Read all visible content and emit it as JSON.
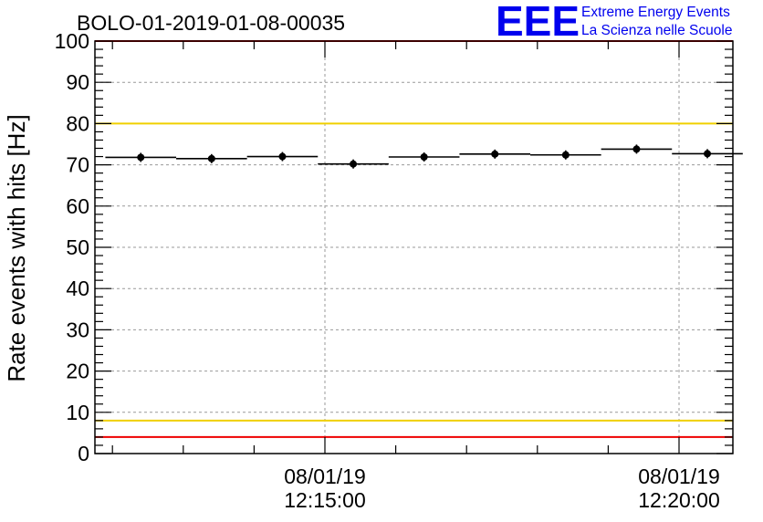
{
  "chart_data": {
    "type": "scatter",
    "title": "BOLO-01-2019-01-08-00035",
    "ylabel": "Rate events with hits [Hz]",
    "xlabel": "",
    "ylim": [
      0,
      100
    ],
    "y_ticks": [
      0,
      10,
      20,
      30,
      40,
      50,
      60,
      70,
      80,
      90,
      100
    ],
    "x_tick_labels": [
      {
        "date": "08/01/19",
        "time": "12:15:00"
      },
      {
        "date": "08/01/19",
        "time": "12:20:00"
      }
    ],
    "grid": true,
    "points": [
      {
        "x": "12:12:24",
        "y": 71.8
      },
      {
        "x": "12:13:24",
        "y": 71.5
      },
      {
        "x": "12:14:24",
        "y": 72.0
      },
      {
        "x": "12:15:24",
        "y": 70.2
      },
      {
        "x": "12:16:24",
        "y": 71.9
      },
      {
        "x": "12:17:24",
        "y": 72.6
      },
      {
        "x": "12:18:24",
        "y": 72.4
      },
      {
        "x": "12:19:24",
        "y": 73.8
      },
      {
        "x": "12:20:24",
        "y": 72.7
      }
    ],
    "bin_width_seconds": 60,
    "threshold_lines": [
      {
        "y": 100,
        "color": "#ee0000"
      },
      {
        "y": 80,
        "color": "#f0d000"
      },
      {
        "y": 8,
        "color": "#f0d000"
      },
      {
        "y": 4,
        "color": "#ee0000"
      }
    ]
  },
  "logo": {
    "mark": "EEE",
    "line1": "Extreme Energy Events",
    "line2": "La Scienza nelle Scuole"
  }
}
